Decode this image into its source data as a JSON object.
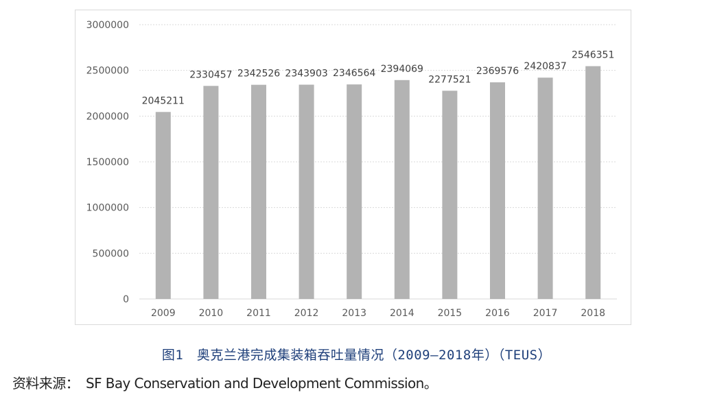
{
  "chart_data": {
    "type": "bar",
    "title": "",
    "xlabel": "",
    "ylabel": "",
    "categories": [
      "2009",
      "2010",
      "2011",
      "2012",
      "2013",
      "2014",
      "2015",
      "2016",
      "2017",
      "2018"
    ],
    "values": [
      2045211,
      2330457,
      2342526,
      2343903,
      2346564,
      2394069,
      2277521,
      2369576,
      2420837,
      2546351
    ],
    "ylim": [
      0,
      3000000
    ],
    "yticks": [
      "0",
      "500000",
      "1000000",
      "1500000",
      "2000000",
      "2500000",
      "3000000"
    ],
    "grid": true,
    "legend": "none",
    "bar_color": "#b3b3b3",
    "grid_color": "#d9d9d9"
  },
  "caption": {
    "text": "图1　奥克兰港完成集装箱吞吐量情况（2009—2018年）（TEUS）"
  },
  "source": {
    "label": "资料来源：",
    "text": "SF Bay Conservation and Development Commission。"
  }
}
